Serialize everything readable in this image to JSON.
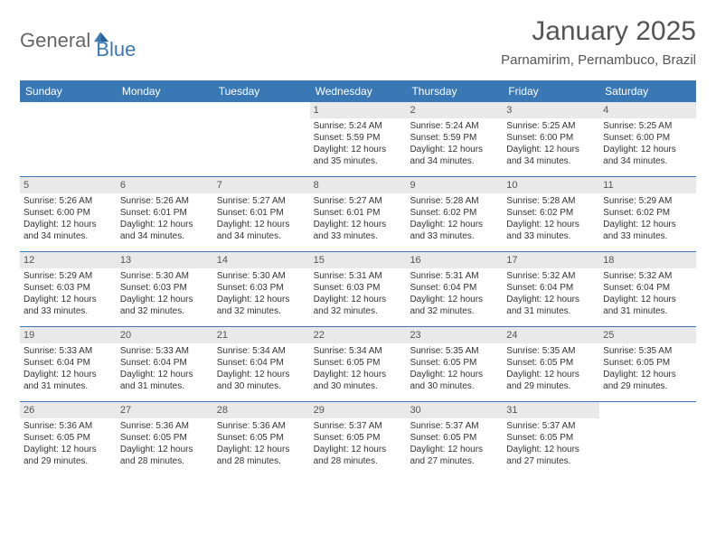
{
  "brand": {
    "part1": "General",
    "part2": "Blue",
    "color_general": "#666666",
    "color_blue": "#3a78b5"
  },
  "title": {
    "month": "January 2025",
    "location": "Parnamirim, Pernambuco, Brazil"
  },
  "colors": {
    "header_bg": "#3a78b5",
    "header_text": "#ffffff",
    "date_bar_bg": "#e9e9e9",
    "text": "#333333",
    "page_bg": "#ffffff"
  },
  "day_names": [
    "Sunday",
    "Monday",
    "Tuesday",
    "Wednesday",
    "Thursday",
    "Friday",
    "Saturday"
  ],
  "weeks": [
    [
      {
        "blank": true
      },
      {
        "blank": true
      },
      {
        "blank": true
      },
      {
        "date": "1",
        "sunrise": "Sunrise: 5:24 AM",
        "sunset": "Sunset: 5:59 PM",
        "daylight1": "Daylight: 12 hours",
        "daylight2": "and 35 minutes."
      },
      {
        "date": "2",
        "sunrise": "Sunrise: 5:24 AM",
        "sunset": "Sunset: 5:59 PM",
        "daylight1": "Daylight: 12 hours",
        "daylight2": "and 34 minutes."
      },
      {
        "date": "3",
        "sunrise": "Sunrise: 5:25 AM",
        "sunset": "Sunset: 6:00 PM",
        "daylight1": "Daylight: 12 hours",
        "daylight2": "and 34 minutes."
      },
      {
        "date": "4",
        "sunrise": "Sunrise: 5:25 AM",
        "sunset": "Sunset: 6:00 PM",
        "daylight1": "Daylight: 12 hours",
        "daylight2": "and 34 minutes."
      }
    ],
    [
      {
        "date": "5",
        "sunrise": "Sunrise: 5:26 AM",
        "sunset": "Sunset: 6:00 PM",
        "daylight1": "Daylight: 12 hours",
        "daylight2": "and 34 minutes."
      },
      {
        "date": "6",
        "sunrise": "Sunrise: 5:26 AM",
        "sunset": "Sunset: 6:01 PM",
        "daylight1": "Daylight: 12 hours",
        "daylight2": "and 34 minutes."
      },
      {
        "date": "7",
        "sunrise": "Sunrise: 5:27 AM",
        "sunset": "Sunset: 6:01 PM",
        "daylight1": "Daylight: 12 hours",
        "daylight2": "and 34 minutes."
      },
      {
        "date": "8",
        "sunrise": "Sunrise: 5:27 AM",
        "sunset": "Sunset: 6:01 PM",
        "daylight1": "Daylight: 12 hours",
        "daylight2": "and 33 minutes."
      },
      {
        "date": "9",
        "sunrise": "Sunrise: 5:28 AM",
        "sunset": "Sunset: 6:02 PM",
        "daylight1": "Daylight: 12 hours",
        "daylight2": "and 33 minutes."
      },
      {
        "date": "10",
        "sunrise": "Sunrise: 5:28 AM",
        "sunset": "Sunset: 6:02 PM",
        "daylight1": "Daylight: 12 hours",
        "daylight2": "and 33 minutes."
      },
      {
        "date": "11",
        "sunrise": "Sunrise: 5:29 AM",
        "sunset": "Sunset: 6:02 PM",
        "daylight1": "Daylight: 12 hours",
        "daylight2": "and 33 minutes."
      }
    ],
    [
      {
        "date": "12",
        "sunrise": "Sunrise: 5:29 AM",
        "sunset": "Sunset: 6:03 PM",
        "daylight1": "Daylight: 12 hours",
        "daylight2": "and 33 minutes."
      },
      {
        "date": "13",
        "sunrise": "Sunrise: 5:30 AM",
        "sunset": "Sunset: 6:03 PM",
        "daylight1": "Daylight: 12 hours",
        "daylight2": "and 32 minutes."
      },
      {
        "date": "14",
        "sunrise": "Sunrise: 5:30 AM",
        "sunset": "Sunset: 6:03 PM",
        "daylight1": "Daylight: 12 hours",
        "daylight2": "and 32 minutes."
      },
      {
        "date": "15",
        "sunrise": "Sunrise: 5:31 AM",
        "sunset": "Sunset: 6:03 PM",
        "daylight1": "Daylight: 12 hours",
        "daylight2": "and 32 minutes."
      },
      {
        "date": "16",
        "sunrise": "Sunrise: 5:31 AM",
        "sunset": "Sunset: 6:04 PM",
        "daylight1": "Daylight: 12 hours",
        "daylight2": "and 32 minutes."
      },
      {
        "date": "17",
        "sunrise": "Sunrise: 5:32 AM",
        "sunset": "Sunset: 6:04 PM",
        "daylight1": "Daylight: 12 hours",
        "daylight2": "and 31 minutes."
      },
      {
        "date": "18",
        "sunrise": "Sunrise: 5:32 AM",
        "sunset": "Sunset: 6:04 PM",
        "daylight1": "Daylight: 12 hours",
        "daylight2": "and 31 minutes."
      }
    ],
    [
      {
        "date": "19",
        "sunrise": "Sunrise: 5:33 AM",
        "sunset": "Sunset: 6:04 PM",
        "daylight1": "Daylight: 12 hours",
        "daylight2": "and 31 minutes."
      },
      {
        "date": "20",
        "sunrise": "Sunrise: 5:33 AM",
        "sunset": "Sunset: 6:04 PM",
        "daylight1": "Daylight: 12 hours",
        "daylight2": "and 31 minutes."
      },
      {
        "date": "21",
        "sunrise": "Sunrise: 5:34 AM",
        "sunset": "Sunset: 6:04 PM",
        "daylight1": "Daylight: 12 hours",
        "daylight2": "and 30 minutes."
      },
      {
        "date": "22",
        "sunrise": "Sunrise: 5:34 AM",
        "sunset": "Sunset: 6:05 PM",
        "daylight1": "Daylight: 12 hours",
        "daylight2": "and 30 minutes."
      },
      {
        "date": "23",
        "sunrise": "Sunrise: 5:35 AM",
        "sunset": "Sunset: 6:05 PM",
        "daylight1": "Daylight: 12 hours",
        "daylight2": "and 30 minutes."
      },
      {
        "date": "24",
        "sunrise": "Sunrise: 5:35 AM",
        "sunset": "Sunset: 6:05 PM",
        "daylight1": "Daylight: 12 hours",
        "daylight2": "and 29 minutes."
      },
      {
        "date": "25",
        "sunrise": "Sunrise: 5:35 AM",
        "sunset": "Sunset: 6:05 PM",
        "daylight1": "Daylight: 12 hours",
        "daylight2": "and 29 minutes."
      }
    ],
    [
      {
        "date": "26",
        "sunrise": "Sunrise: 5:36 AM",
        "sunset": "Sunset: 6:05 PM",
        "daylight1": "Daylight: 12 hours",
        "daylight2": "and 29 minutes."
      },
      {
        "date": "27",
        "sunrise": "Sunrise: 5:36 AM",
        "sunset": "Sunset: 6:05 PM",
        "daylight1": "Daylight: 12 hours",
        "daylight2": "and 28 minutes."
      },
      {
        "date": "28",
        "sunrise": "Sunrise: 5:36 AM",
        "sunset": "Sunset: 6:05 PM",
        "daylight1": "Daylight: 12 hours",
        "daylight2": "and 28 minutes."
      },
      {
        "date": "29",
        "sunrise": "Sunrise: 5:37 AM",
        "sunset": "Sunset: 6:05 PM",
        "daylight1": "Daylight: 12 hours",
        "daylight2": "and 28 minutes."
      },
      {
        "date": "30",
        "sunrise": "Sunrise: 5:37 AM",
        "sunset": "Sunset: 6:05 PM",
        "daylight1": "Daylight: 12 hours",
        "daylight2": "and 27 minutes."
      },
      {
        "date": "31",
        "sunrise": "Sunrise: 5:37 AM",
        "sunset": "Sunset: 6:05 PM",
        "daylight1": "Daylight: 12 hours",
        "daylight2": "and 27 minutes."
      },
      {
        "blank": true
      }
    ]
  ]
}
